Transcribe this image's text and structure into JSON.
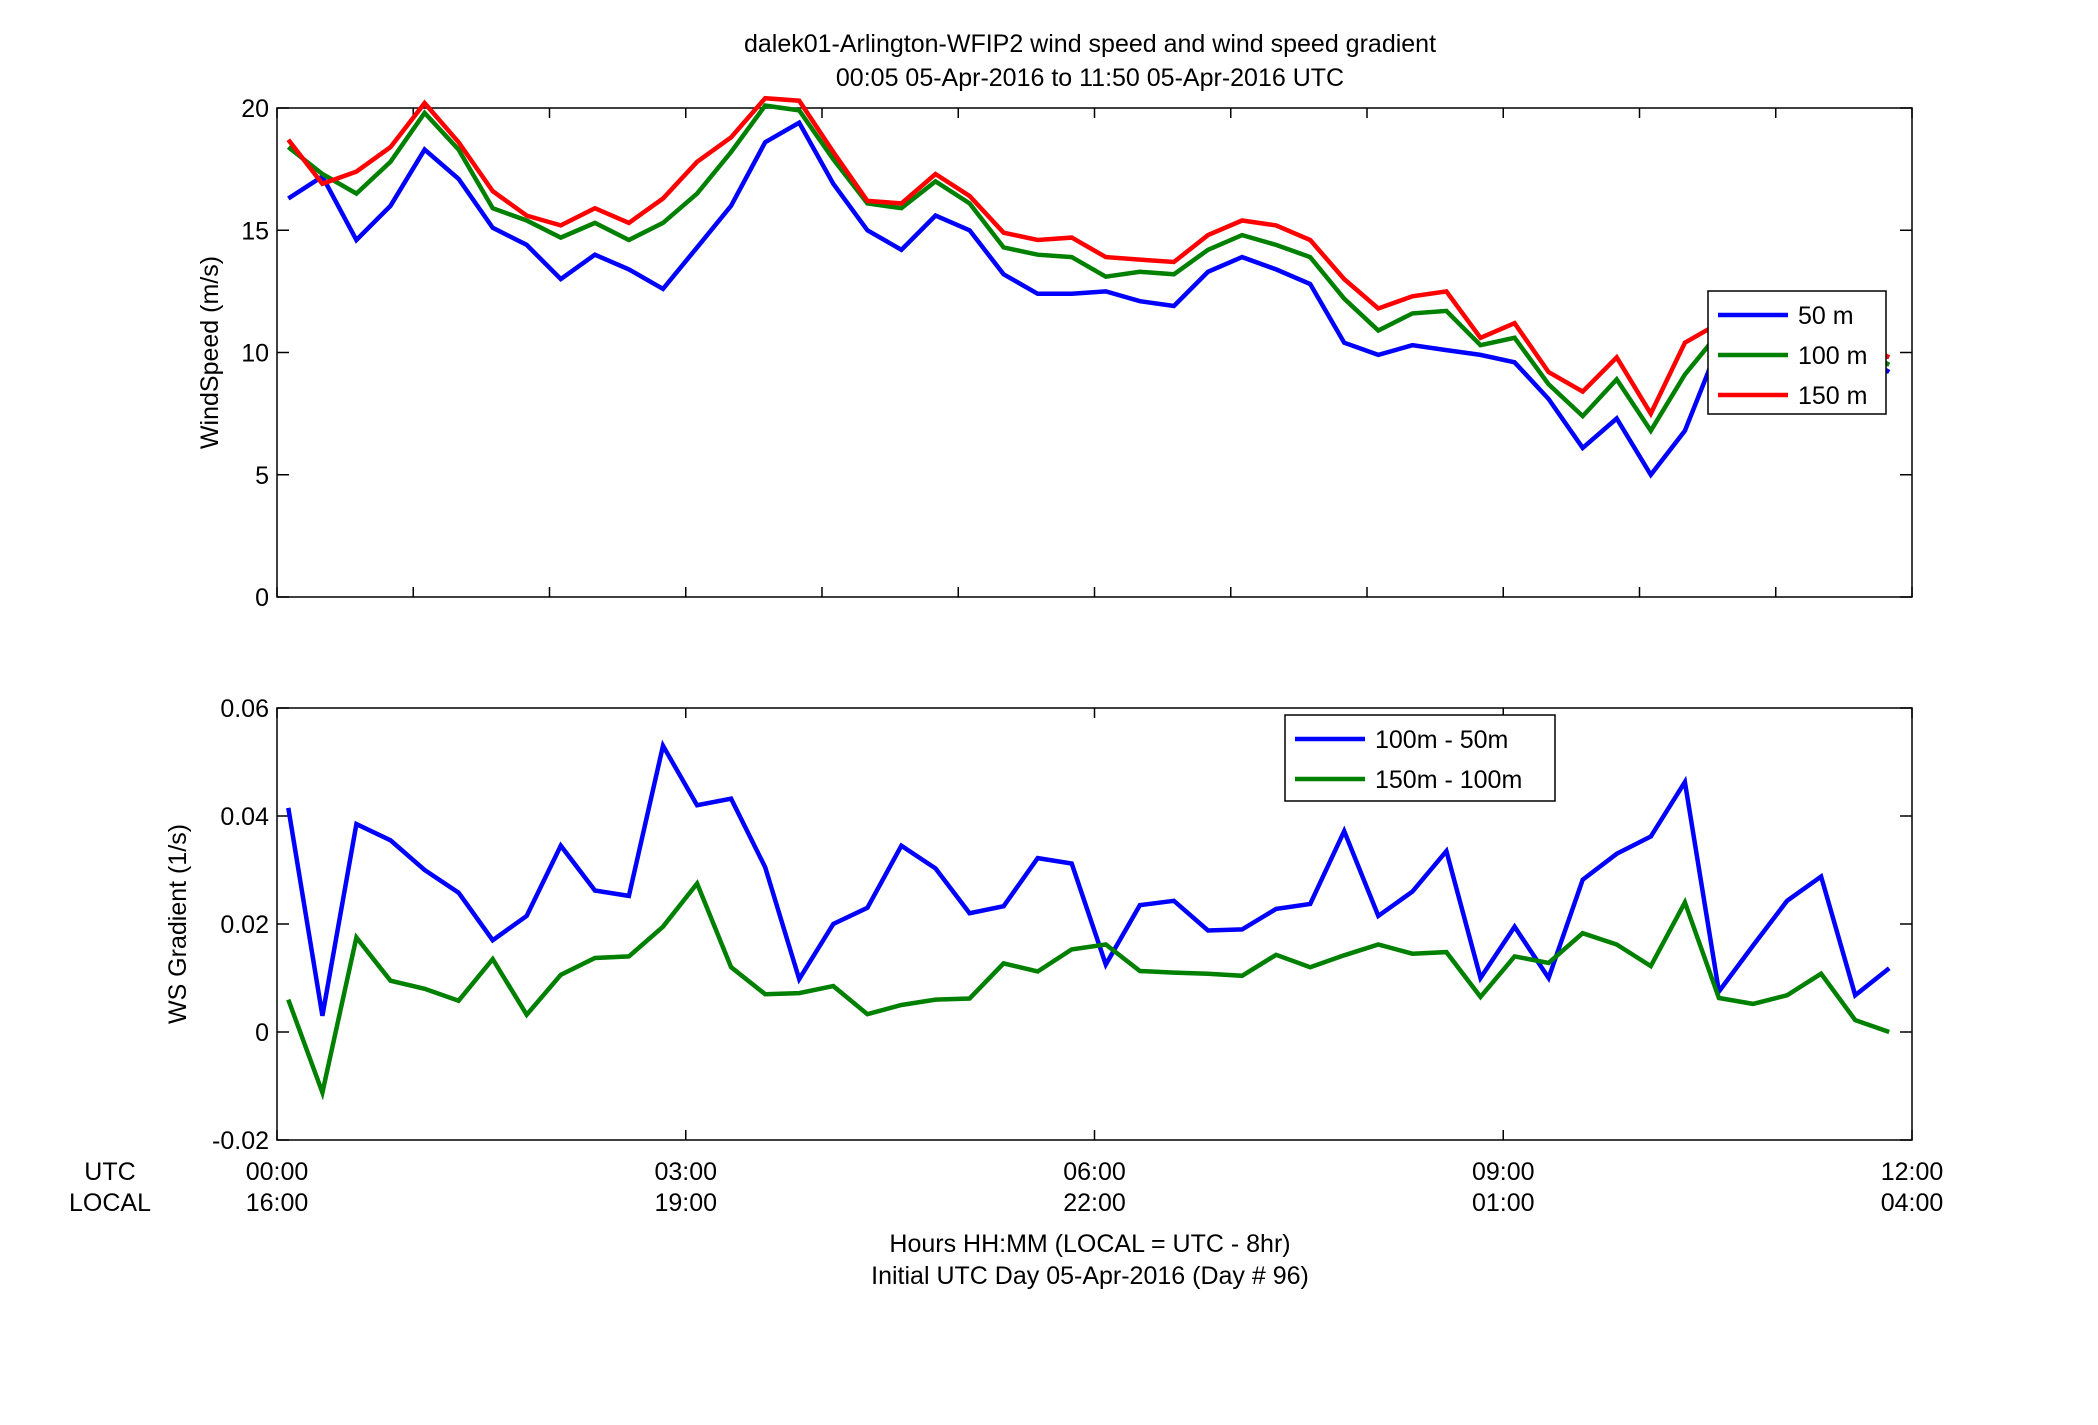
{
  "figure": {
    "title_line1": "dalek01-Arlington-WFIP2  wind speed and wind speed gradient",
    "title_line2": "00:05 05-Apr-2016 to 11:50 05-Apr-2016  UTC",
    "xlabel_line1": "Hours HH:MM  (LOCAL = UTC - 8hr)",
    "xlabel_line2": "Initial UTC Day 05-Apr-2016 (Day # 96)",
    "utc_label": "UTC",
    "local_label": "LOCAL",
    "utc_ticks": [
      "00:00",
      "03:00",
      "06:00",
      "09:00",
      "12:00"
    ],
    "local_ticks": [
      "16:00",
      "19:00",
      "22:00",
      "01:00",
      "04:00"
    ]
  },
  "chart_data": [
    {
      "type": "line",
      "ylabel": "WindSpeed (m/s)",
      "xlim": [
        0,
        12
      ],
      "ylim": [
        0,
        20
      ],
      "yticks": [
        0,
        5,
        10,
        15,
        20
      ],
      "yticklabels": [
        "0",
        "5",
        "10",
        "15",
        "20"
      ],
      "xminor_step": 1,
      "grid": false,
      "legend_position": "right",
      "x": [
        0.083,
        0.333,
        0.583,
        0.833,
        1.083,
        1.333,
        1.583,
        1.833,
        2.083,
        2.333,
        2.583,
        2.833,
        3.083,
        3.333,
        3.583,
        3.833,
        4.083,
        4.333,
        4.583,
        4.833,
        5.083,
        5.333,
        5.583,
        5.833,
        6.083,
        6.333,
        6.583,
        6.833,
        7.083,
        7.333,
        7.583,
        7.833,
        8.083,
        8.333,
        8.583,
        8.833,
        9.083,
        9.333,
        9.583,
        9.833,
        10.083,
        10.333,
        10.583,
        10.833,
        11.083,
        11.333,
        11.583,
        11.833
      ],
      "series": [
        {
          "name": "50 m",
          "color": "#0000ff",
          "values": [
            16.3,
            17.2,
            14.6,
            16.0,
            18.3,
            17.1,
            15.1,
            14.4,
            13.0,
            14.0,
            13.4,
            12.6,
            14.3,
            16.0,
            18.6,
            19.4,
            16.9,
            15.0,
            14.2,
            15.6,
            15.0,
            13.2,
            12.4,
            12.4,
            12.5,
            12.1,
            11.9,
            13.3,
            13.9,
            13.4,
            12.8,
            10.4,
            9.9,
            10.3,
            10.1,
            9.9,
            9.6,
            8.1,
            6.1,
            7.3,
            5.0,
            6.8,
            10.3,
            10.7,
            10.2,
            10.4,
            10.0,
            9.2
          ]
        },
        {
          "name": "100 m",
          "color": "#008000",
          "values": [
            18.4,
            17.3,
            16.5,
            17.8,
            19.8,
            18.3,
            15.9,
            15.4,
            14.7,
            15.3,
            14.6,
            15.3,
            16.5,
            18.2,
            20.1,
            19.9,
            17.9,
            16.1,
            15.9,
            17.0,
            16.1,
            14.3,
            14.0,
            13.9,
            13.1,
            13.3,
            13.2,
            14.2,
            14.8,
            14.4,
            13.9,
            12.2,
            10.9,
            11.6,
            11.7,
            10.3,
            10.6,
            8.7,
            7.4,
            8.9,
            6.8,
            9.1,
            10.8,
            11.0,
            10.5,
            10.7,
            10.2,
            9.5
          ]
        },
        {
          "name": "150 m",
          "color": "#ff0000",
          "values": [
            18.7,
            16.9,
            17.4,
            18.4,
            20.2,
            18.6,
            16.6,
            15.6,
            15.2,
            15.9,
            15.3,
            16.3,
            17.8,
            18.8,
            20.4,
            20.3,
            18.2,
            16.2,
            16.1,
            17.3,
            16.4,
            14.9,
            14.6,
            14.7,
            13.9,
            13.8,
            13.7,
            14.8,
            15.4,
            15.2,
            14.6,
            13.0,
            11.8,
            12.3,
            12.5,
            10.6,
            11.2,
            9.2,
            8.4,
            9.8,
            7.5,
            10.4,
            11.2,
            11.5,
            10.9,
            11.1,
            10.5,
            9.8
          ]
        }
      ]
    },
    {
      "type": "line",
      "ylabel": "WS Gradient (1/s)",
      "xlim": [
        0,
        12
      ],
      "ylim": [
        -0.02,
        0.06
      ],
      "yticks": [
        -0.02,
        0,
        0.02,
        0.04,
        0.06
      ],
      "yticklabels": [
        "-0.02",
        "0",
        "0.02",
        "0.04",
        "0.06"
      ],
      "xminor_step": 3,
      "grid": false,
      "legend_position": "top-right",
      "x": [
        0.083,
        0.333,
        0.583,
        0.833,
        1.083,
        1.333,
        1.583,
        1.833,
        2.083,
        2.333,
        2.583,
        2.833,
        3.083,
        3.333,
        3.583,
        3.833,
        4.083,
        4.333,
        4.583,
        4.833,
        5.083,
        5.333,
        5.583,
        5.833,
        6.083,
        6.333,
        6.583,
        6.833,
        7.083,
        7.333,
        7.583,
        7.833,
        8.083,
        8.333,
        8.583,
        8.833,
        9.083,
        9.333,
        9.583,
        9.833,
        10.083,
        10.333,
        10.583,
        10.833,
        11.083,
        11.333,
        11.583,
        11.833
      ],
      "series": [
        {
          "name": "100m - 50m",
          "color": "#0000ff",
          "values": [
            0.0415,
            0.003,
            0.0385,
            0.0355,
            0.03,
            0.0258,
            0.017,
            0.0215,
            0.0345,
            0.0262,
            0.0252,
            0.053,
            0.042,
            0.0432,
            0.0305,
            0.0098,
            0.02,
            0.023,
            0.0345,
            0.0303,
            0.022,
            0.0233,
            0.0322,
            0.0312,
            0.0125,
            0.0235,
            0.0243,
            0.0188,
            0.019,
            0.0228,
            0.0237,
            0.0372,
            0.0215,
            0.026,
            0.0335,
            0.01,
            0.0195,
            0.01,
            0.0282,
            0.033,
            0.0362,
            0.0463,
            0.0075,
            0.016,
            0.0243,
            0.0288,
            0.0068,
            0.0118
          ]
        },
        {
          "name": "150m - 100m",
          "color": "#008000",
          "values": [
            0.006,
            -0.0112,
            0.0175,
            0.0095,
            0.008,
            0.0058,
            0.0135,
            0.0032,
            0.0106,
            0.0137,
            0.014,
            0.0195,
            0.0275,
            0.012,
            0.007,
            0.0072,
            0.0085,
            0.0033,
            0.005,
            0.006,
            0.0062,
            0.0127,
            0.0112,
            0.0153,
            0.0162,
            0.0113,
            0.011,
            0.0108,
            0.0104,
            0.0143,
            0.012,
            0.0142,
            0.0162,
            0.0145,
            0.0148,
            0.0065,
            0.014,
            0.0128,
            0.0183,
            0.0162,
            0.0122,
            0.024,
            0.0063,
            0.0052,
            0.0068,
            0.0108,
            0.0022,
            0.0
          ]
        }
      ]
    }
  ]
}
